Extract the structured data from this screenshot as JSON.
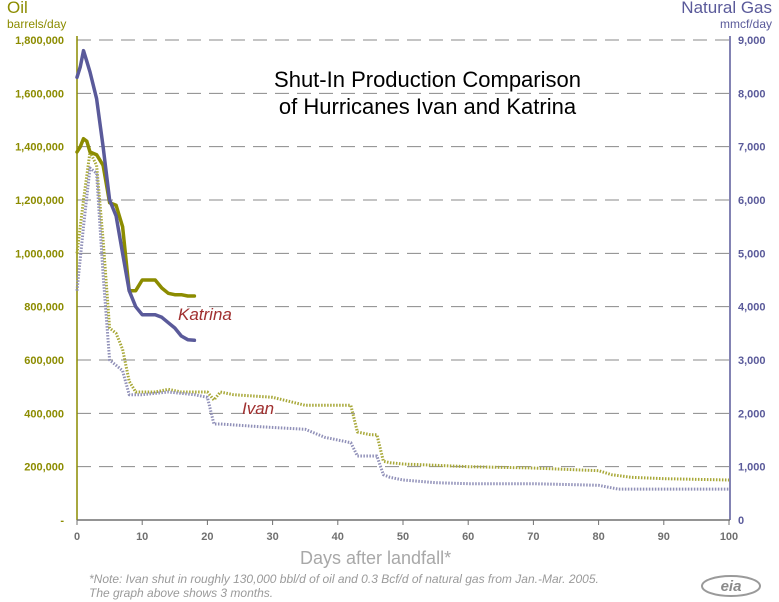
{
  "chart_data": {
    "type": "line",
    "title_line1": "Shut-In Production Comparison",
    "title_line2": "of Hurricanes Ivan and Katrina",
    "xlabel": "Days after landfall*",
    "left_axis": {
      "title": "Oil",
      "unit": "barrels/day",
      "ylim": [
        0,
        1800000
      ],
      "ticks": [
        "-",
        "200,000",
        "400,000",
        "600,000",
        "800,000",
        "1,000,000",
        "1,200,000",
        "1,400,000",
        "1,600,000",
        "1,800,000"
      ],
      "color": "#8c8c00"
    },
    "right_axis": {
      "title": "Natural Gas",
      "unit": "mmcf/day",
      "ylim": [
        0,
        9000
      ],
      "ticks": [
        "0",
        "1,000",
        "2,000",
        "3,000",
        "4,000",
        "5,000",
        "6,000",
        "7,000",
        "8,000",
        "9,000"
      ],
      "color": "#5a5a9a"
    },
    "xlim": [
      0,
      100
    ],
    "xticks": [
      "0",
      "10",
      "20",
      "30",
      "40",
      "50",
      "60",
      "70",
      "80",
      "90",
      "100"
    ],
    "grid": "horizontal-dashed",
    "series": [
      {
        "name": "Katrina",
        "metric": "oil",
        "axis": "left",
        "color": "#8c8c00",
        "style": "solid",
        "x": [
          0,
          0.5,
          1,
          1.5,
          2,
          3,
          4,
          5,
          6,
          7,
          8,
          9,
          10,
          11,
          12,
          13,
          14,
          15,
          16,
          17,
          18
        ],
        "y": [
          1380000,
          1400000,
          1430000,
          1420000,
          1380000,
          1370000,
          1330000,
          1190000,
          1180000,
          1100000,
          860000,
          860000,
          900000,
          900000,
          900000,
          870000,
          850000,
          845000,
          845000,
          840000,
          840000
        ]
      },
      {
        "name": "Katrina",
        "metric": "gas",
        "axis": "right",
        "color": "#5a5a9a",
        "style": "solid",
        "x": [
          0,
          0.5,
          1,
          1.5,
          2,
          3,
          4,
          5,
          6,
          7,
          8,
          9,
          10,
          11,
          12,
          13,
          14,
          15,
          16,
          17,
          18
        ],
        "y": [
          8300,
          8500,
          8800,
          8600,
          8400,
          7900,
          7000,
          6000,
          5700,
          5000,
          4300,
          4000,
          3850,
          3850,
          3850,
          3800,
          3700,
          3600,
          3450,
          3380,
          3370
        ]
      },
      {
        "name": "Ivan",
        "metric": "oil",
        "axis": "left",
        "color": "#a8a838",
        "style": "dotted",
        "x": [
          0,
          1,
          2,
          3,
          4,
          5,
          6,
          7,
          8,
          9,
          10,
          12,
          14,
          16,
          18,
          20,
          21,
          22,
          24,
          30,
          35,
          38,
          42,
          43,
          45,
          46,
          47,
          48,
          50,
          55,
          60,
          70,
          80,
          82,
          85,
          90,
          100
        ],
        "y": [
          1000000,
          1200000,
          1380000,
          1330000,
          1050000,
          720000,
          700000,
          640000,
          520000,
          480000,
          480000,
          480000,
          490000,
          480000,
          480000,
          480000,
          450000,
          480000,
          470000,
          460000,
          430000,
          430000,
          430000,
          330000,
          320000,
          320000,
          220000,
          215000,
          210000,
          205000,
          200000,
          195000,
          185000,
          170000,
          160000,
          155000,
          150000
        ]
      },
      {
        "name": "Ivan",
        "metric": "gas",
        "axis": "right",
        "color": "#9090b8",
        "style": "dotted",
        "x": [
          0,
          1,
          2,
          3,
          4,
          5,
          6,
          7,
          8,
          9,
          10,
          14,
          18,
          20,
          21,
          22,
          28,
          35,
          38,
          42,
          43,
          46,
          47,
          48,
          50,
          55,
          60,
          70,
          80,
          83,
          90,
          100
        ],
        "y": [
          4300,
          5500,
          6600,
          6500,
          4600,
          3000,
          2900,
          2800,
          2350,
          2350,
          2350,
          2400,
          2350,
          2300,
          1800,
          1800,
          1750,
          1700,
          1550,
          1450,
          1200,
          1200,
          850,
          800,
          750,
          700,
          680,
          680,
          650,
          580,
          580,
          580
        ]
      }
    ],
    "series_labels": {
      "katrina": "Katrina",
      "ivan": "Ivan"
    },
    "note_line1": "*Note: Ivan shut in roughly 130,000 bbl/d of oil and 0.3 Bcf/d of natural gas from Jan.-Mar. 2005.",
    "note_line2": "The graph above shows 3 months.",
    "logo_text": "eia"
  }
}
